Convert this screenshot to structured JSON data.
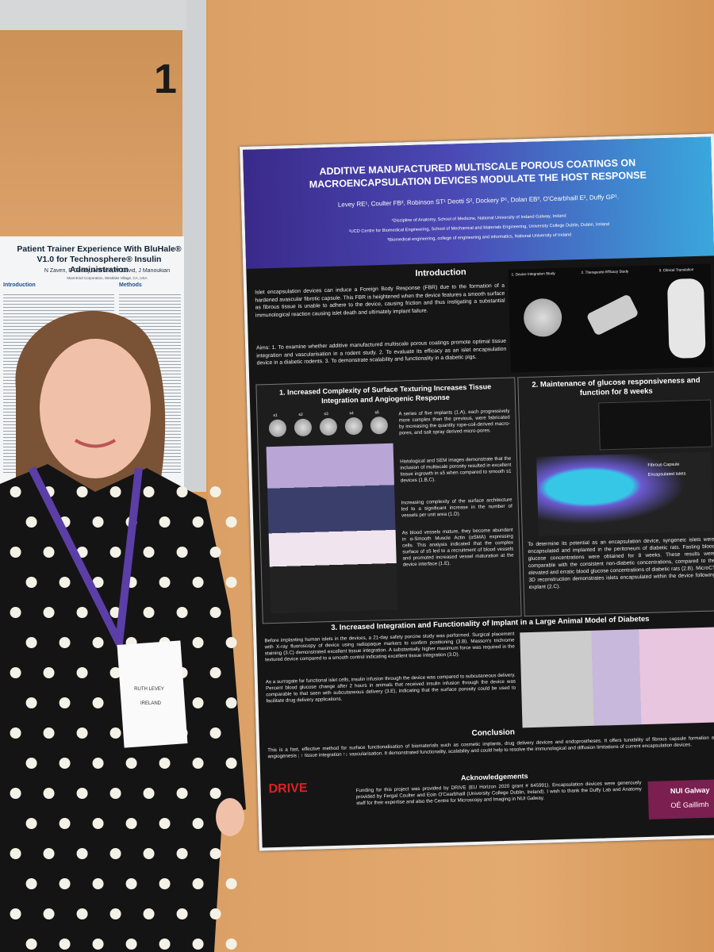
{
  "booth_number": "1",
  "neighbor_poster": {
    "title": "Patient Trainer Experience With BluHale® V1.0 for Technosphere® Insulin Administration",
    "authors": "N Zaveri, E Gentry, A White, M David, J Manoukian",
    "affiliation": "MannKind Corporation, Westlake Village, CA, USA",
    "sections": [
      "Introduction",
      "Methods"
    ]
  },
  "badge": {
    "name": "RUTH LEVEY",
    "country": "IRELAND"
  },
  "poster": {
    "title": "ADDITIVE MANUFACTURED MULTISCALE POROUS COATINGS ON MACROENCAPSULATION DEVICES MODULATE THE HOST RESPONSE",
    "authors": "Levey RE¹, Coulter FB², Robinson ST¹ Deotti S², Dockery P¹, Dolan EB³, O'Cearbhaill E², Duffy GP¹.",
    "affiliations": [
      "¹Discipline of Anatomy, School of Medicine, National University of Ireland Galway, Ireland",
      "²UCD Centre for Biomedical Engineering, School of Mechanical and Materials Engineering, University College Dublin, Dublin, Ireland",
      "³Biomedical engineering, college of engineering and informatics, National University of Ireland"
    ],
    "introduction": {
      "heading": "Introduction",
      "text": "Islet encapsulation devices can induce a Foreign Body Response (FBR) due to the formation of a hardened avascular fibrotic capsule. This FBR is heightened when the device features a smooth surface as fibrous tissue is unable to adhere to the device, causing friction and thus instigating a substantial immunological reaction causing islet death and ultimately implant failure.",
      "aims": "Aims: 1. To examine whether additive manufactured multiscale porous coatings promote optimal tissue integration and vascularisation in a rodent study. 2. To evaluate its efficacy as an islet encapsulation device in a diabetic rodents. 3. To demonstrate scalability and functionality in a diabetic pigs.",
      "figure_labels": [
        "1. Device Integration Study",
        "2. Therapeutic Efficacy Study",
        "3. Clinical Translation"
      ]
    },
    "section1": {
      "heading": "1. Increased Complexity of Surface Texturing Increases Tissue Integration and Angiogenic Response",
      "paragraphs": [
        "A series of five implants (1.A), each progressively more complex than the previous, were fabricated by increasing the quantity rope-coil-derived macro-pores, and salt spray derived micro-pores.",
        "Histological and SEM images demonstrate that the inclusion of multiscale porosity resulted in excellent tissue ingrowth in s5 when compared to smooth s1 devices (1.B,C).",
        "Increasing complexity of the surface architecture led to a significant increase in the number of vessels per unit area (1.D).",
        "As blood vessels mature, they become abundant in α-Smooth Muscle Actin (αSMA) expressing cells. This analysis indicated that the complex surface of s5 led to a recruitment of blood vessels and promoted increased vessel maturation at the device interface (1.E)."
      ],
      "device_labels": [
        "s1",
        "s2",
        "s3",
        "s4",
        "s5"
      ]
    },
    "section2": {
      "heading": "2. Maintenance of glucose responsiveness and function for 8 weeks",
      "legend": [
        "Fibrous Capsule",
        "Encapsulated Islets"
      ],
      "text": "To determine its potential as an encapsulation device, syngeneic islets were encapsulated and implanted in the peritoneum of diabetic rats. Fasting blood glucose concentrations were obtained for 8 weeks. These results were comparable with the consistent non-diabetic concentrations, compared to the elevated and erratic blood glucose concentrations of diabetic rats (2.B). MicroCT 3D reconstruction demonstrates islets encapsulated within the device following explant (2.C)."
    },
    "section3": {
      "heading": "3. Increased Integration and Functionality of Implant in a Large Animal Model of Diabetes",
      "paragraphs": [
        "Before implanting human islets in the devices, a 21-day safety porcine study was performed. Surgical placement with X-ray fluoroscopy of device using radiopaque markers to confirm positioning (3.B). Masson's trichrome staining (3.C) demonstrated excellent tissue integration. A substantially higher maximum force was required in the textured device compared to a smooth control indicating excellent tissue integration (3.D).",
        "As a surrogate for functional islet cells, insulin infusion through the device was compared to subcutaneous delivery. Percent blood glucose change after 2 hours in animals that received insulin infusion through the device was comparable to that seen with subcutaneous delivery (3.E), indicating that the surface porosity could be used to facilitate drug delivery applications."
      ]
    },
    "conclusion": {
      "heading": "Conclusion",
      "text": "This is a fast, effective method for surface functionalisation of biomaterials such as cosmetic implants, drug delivery devices and endoprostheses. It offers tunability of fibrous capsule formation and angiogenesis ; ↑ tissue integration ↑↓ vascularisation. It demonstrated functionality, scalability and could help to resolve the immunological and diffusion limitations of current encapsulation devices."
    },
    "acknowledgements": {
      "heading": "Acknowledgements",
      "text": "Funding for this project was provided by DRIVE (EU Horizon 2020 grant # 645991). Encapsulation devices were generously provided by Fergal Coulter and Eoin O'Cearbhaill (University College Dublin, Ireland). I wish to thank the Duffy Lab and Anatomy staff for their expertise and also the Centre for Microscopy and Imaging in NUI Galway."
    },
    "logos": [
      "DRIVE",
      "NUI Galway",
      "OÉ Gaillimh"
    ]
  }
}
